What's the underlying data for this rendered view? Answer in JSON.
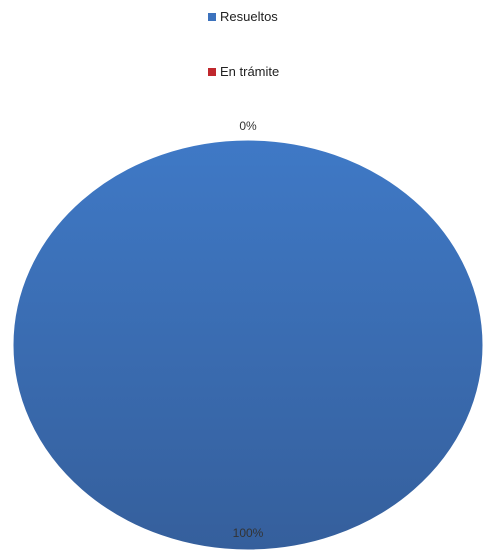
{
  "chart_data": {
    "type": "pie",
    "categories": [
      "Resueltos",
      "En trámite"
    ],
    "values": [
      100,
      0
    ],
    "data_labels": [
      "100%",
      "0%"
    ],
    "colors": [
      "#3c72bd",
      "#c0282d"
    ],
    "legend_position": "top",
    "title": ""
  }
}
